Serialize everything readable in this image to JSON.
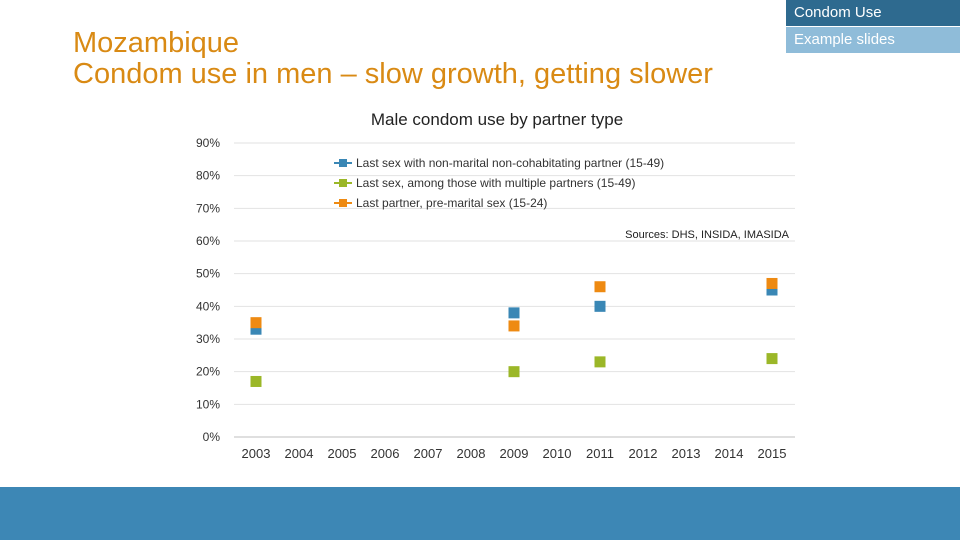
{
  "header": {
    "tag_top": "Condom Use",
    "tag_sub": "Example slides",
    "title_line1": "Mozambique",
    "title_line2": "Condom use in men – slow growth, getting slower"
  },
  "colors": {
    "title": "#d98a14",
    "tag_top_bg": "#2e6a8f",
    "tag_sub_bg": "#8fbcd9",
    "footer_bg": "#3d87b5"
  },
  "chart_data": {
    "type": "scatter",
    "title": "Male condom use by partner type",
    "source": "Sources: DHS, INSIDA, IMASIDA",
    "x": [
      2003,
      2004,
      2005,
      2006,
      2007,
      2008,
      2009,
      2010,
      2011,
      2012,
      2013,
      2014,
      2015
    ],
    "x_labels": [
      "2003",
      "2004",
      "2005",
      "2006",
      "2007",
      "2008",
      "2009",
      "2010",
      "2011",
      "2012",
      "2013",
      "2014",
      "2015"
    ],
    "y_ticks": [
      "0%",
      "10%",
      "20%",
      "30%",
      "40%",
      "50%",
      "60%",
      "70%",
      "80%",
      "90%"
    ],
    "ylim": [
      0,
      90
    ],
    "legend_position": "top-center",
    "series": [
      {
        "name": "Last sex with non-marital non-cohabitating partner (15-49)",
        "color": "#3a87b5",
        "points": [
          {
            "x": 2003,
            "y": 33
          },
          {
            "x": 2009,
            "y": 38
          },
          {
            "x": 2011,
            "y": 40
          },
          {
            "x": 2015,
            "y": 45
          }
        ]
      },
      {
        "name": "Last sex, among those with multiple partners (15-49)",
        "color": "#9bb728",
        "points": [
          {
            "x": 2003,
            "y": 17
          },
          {
            "x": 2009,
            "y": 20
          },
          {
            "x": 2011,
            "y": 23
          },
          {
            "x": 2015,
            "y": 24
          }
        ]
      },
      {
        "name": "Last partner, pre-marital sex (15-24)",
        "color": "#ee8a12",
        "points": [
          {
            "x": 2003,
            "y": 35
          },
          {
            "x": 2009,
            "y": 34
          },
          {
            "x": 2011,
            "y": 46
          },
          {
            "x": 2015,
            "y": 47
          }
        ]
      }
    ]
  }
}
